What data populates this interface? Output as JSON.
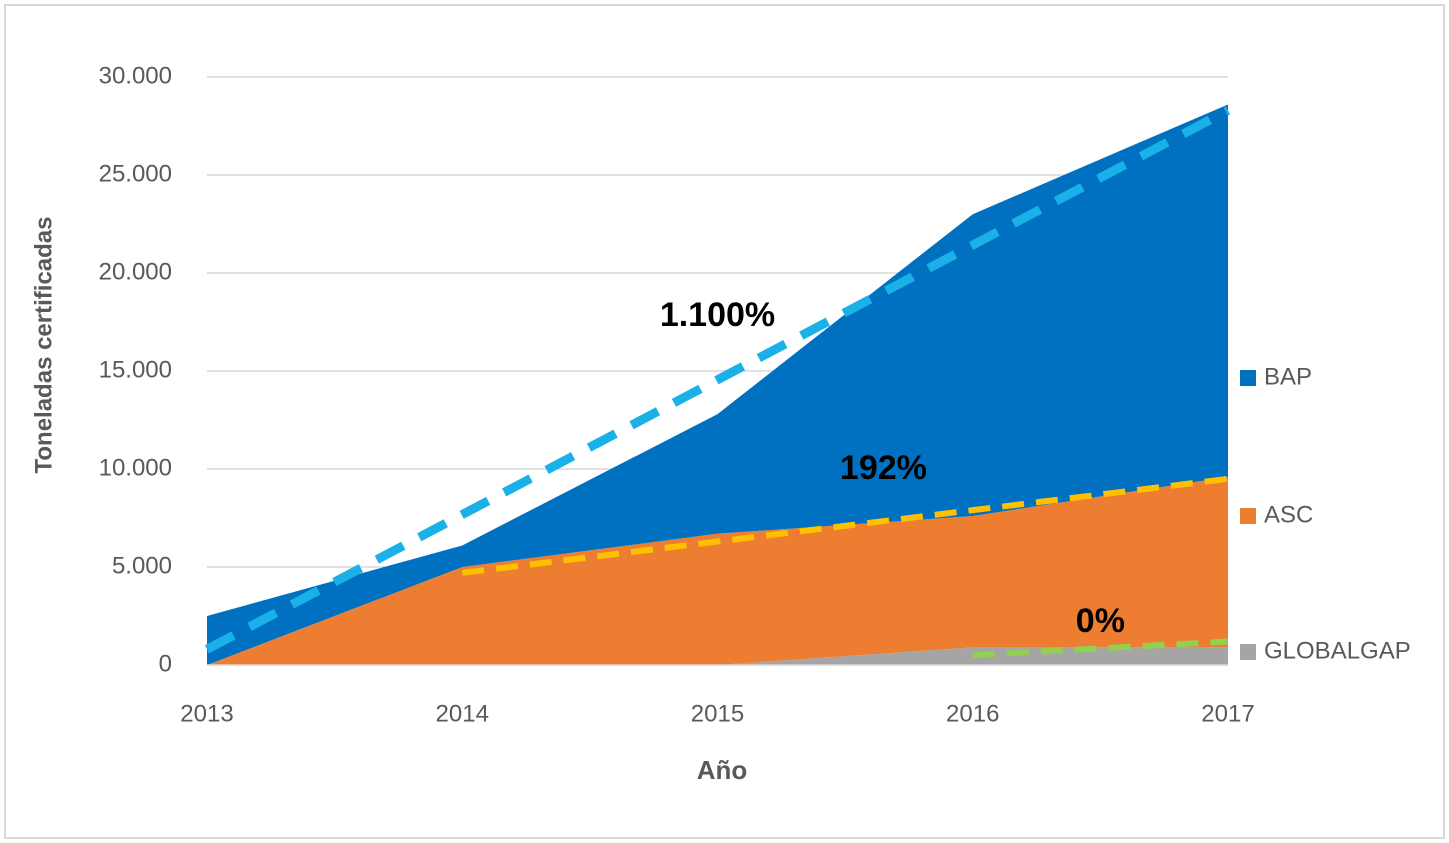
{
  "chart_data": {
    "type": "stacked_area",
    "x_label": "Año",
    "y_label": "Toneladas  certificadas",
    "categories": [
      "2013",
      "2014",
      "2015",
      "2016",
      "2017"
    ],
    "series": [
      {
        "name": "GLOBALGAP",
        "color": "#a5a5a5",
        "values": [
          0,
          0,
          0,
          900,
          900
        ],
        "trend": {
          "color": "#92d050",
          "values": [
            null,
            null,
            null,
            500,
            1200
          ],
          "label": "0%"
        }
      },
      {
        "name": "ASC",
        "color": "#ed7d31",
        "values": [
          0,
          5000,
          6700,
          6700,
          8700
        ],
        "trend": {
          "color": "#ffc000",
          "values": [
            null,
            4700,
            6300,
            7900,
            9500
          ],
          "label": "192%"
        }
      },
      {
        "name": "BAP",
        "color": "#0070c0",
        "values": [
          2500,
          1100,
          6100,
          15400,
          19000
        ],
        "trend": {
          "color": "#1ab0e8",
          "values": [
            800,
            7675,
            14550,
            21425,
            28300
          ],
          "label": "1.100%"
        }
      }
    ],
    "ylim": [
      0,
      30000
    ],
    "yticks": [
      0,
      {
        "value": 5000,
        "label": "5.000"
      },
      {
        "value": 10000,
        "label": "10.000"
      },
      {
        "value": 15000,
        "label": "15.000"
      },
      {
        "value": 20000,
        "label": "20.000"
      },
      {
        "value": 25000,
        "label": "25.000"
      },
      {
        "value": 30000,
        "label": "30.000"
      }
    ],
    "grid": true,
    "legend": "right"
  }
}
